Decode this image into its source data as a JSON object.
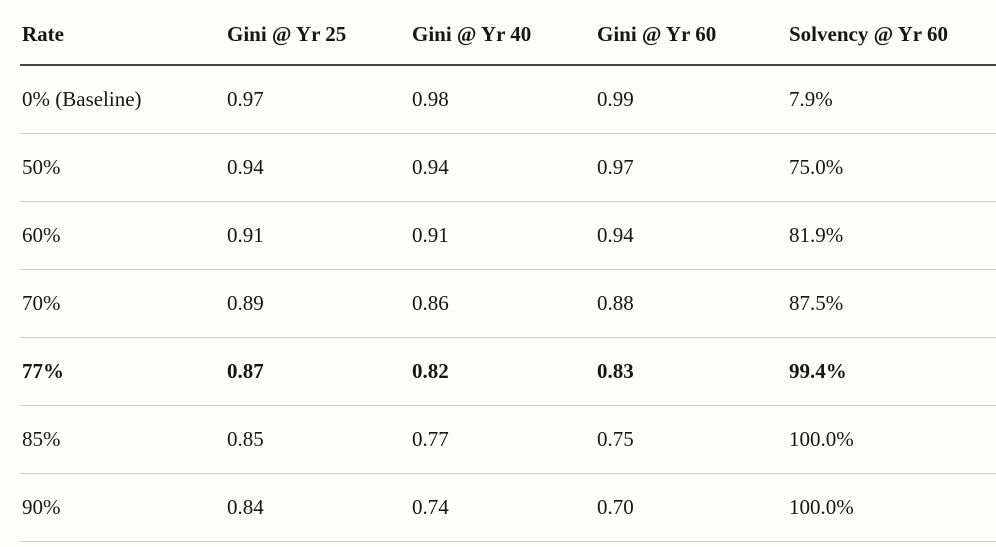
{
  "colors": {
    "background": "#fdfdfb",
    "text": "#161614",
    "header_rule": "#454441",
    "row_divider": "#c9c8c4"
  },
  "chart_data": {
    "type": "table",
    "columns": [
      "Rate",
      "Gini @ Yr 25",
      "Gini @ Yr 40",
      "Gini @ Yr 60",
      "Solvency @ Yr 60"
    ],
    "rows": [
      [
        "0% (Baseline)",
        "0.97",
        "0.98",
        "0.99",
        "7.9%"
      ],
      [
        "50%",
        "0.94",
        "0.94",
        "0.97",
        "75.0%"
      ],
      [
        "60%",
        "0.91",
        "0.91",
        "0.94",
        "81.9%"
      ],
      [
        "70%",
        "0.89",
        "0.86",
        "0.88",
        "87.5%"
      ],
      [
        "77%",
        "0.87",
        "0.82",
        "0.83",
        "99.4%"
      ],
      [
        "85%",
        "0.85",
        "0.77",
        "0.75",
        "100.0%"
      ],
      [
        "90%",
        "0.84",
        "0.74",
        "0.70",
        "100.0%"
      ]
    ],
    "bold_rows": [
      4
    ],
    "numeric": {
      "rate_pct": [
        0,
        50,
        60,
        70,
        77,
        85,
        90
      ],
      "gini_yr25": [
        0.97,
        0.94,
        0.91,
        0.89,
        0.87,
        0.85,
        0.84
      ],
      "gini_yr40": [
        0.98,
        0.94,
        0.91,
        0.86,
        0.82,
        0.77,
        0.74
      ],
      "gini_yr60": [
        0.99,
        0.97,
        0.94,
        0.88,
        0.83,
        0.75,
        0.7
      ],
      "solvency_yr60_pct": [
        7.9,
        75.0,
        81.9,
        87.5,
        99.4,
        100.0,
        100.0
      ]
    },
    "layout": {
      "header_rule_weight": "2px",
      "row_divider_weight": "1px",
      "alignment": "left"
    }
  }
}
